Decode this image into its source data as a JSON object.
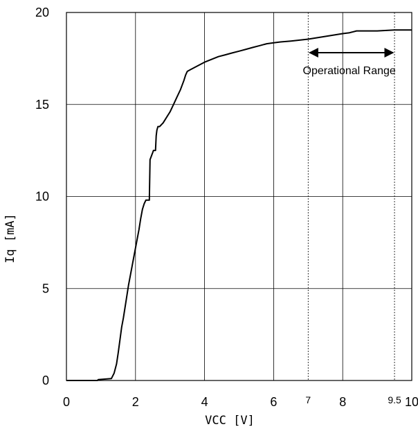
{
  "chart_data": {
    "type": "line",
    "title": "",
    "xlabel": "VCC [V]",
    "ylabel": "Iq [mA]",
    "xlim": [
      0,
      10
    ],
    "ylim": [
      0,
      20
    ],
    "grid": true,
    "x_ticks": [
      {
        "value": 0,
        "label": "0"
      },
      {
        "value": 2,
        "label": "2"
      },
      {
        "value": 4,
        "label": "4"
      },
      {
        "value": 6,
        "label": "6"
      },
      {
        "value": 7,
        "label": "7",
        "small": true
      },
      {
        "value": 8,
        "label": "8"
      },
      {
        "value": 9.5,
        "label": "9.5",
        "small": true
      },
      {
        "value": 10,
        "label": "10"
      }
    ],
    "y_ticks": [
      {
        "value": 0,
        "label": "0"
      },
      {
        "value": 5,
        "label": "5"
      },
      {
        "value": 10,
        "label": "10"
      },
      {
        "value": 15,
        "label": "15"
      },
      {
        "value": 20,
        "label": "20"
      }
    ],
    "grid_x_solid": [
      2,
      4,
      6,
      8
    ],
    "grid_x_dotted": [
      7,
      9.5
    ],
    "grid_y": [
      5,
      10,
      15
    ],
    "annotation": {
      "text": "Operational Range",
      "x_start": 7,
      "x_end": 9.5,
      "y": 17.7
    },
    "series": [
      {
        "x": [
          0,
          0.9,
          0.92,
          1.3,
          1.38,
          1.45,
          1.5,
          1.55,
          1.6,
          1.65,
          1.7,
          1.75,
          1.8,
          1.85,
          1.9,
          1.95,
          2.0,
          2.05,
          2.1,
          2.15,
          2.2,
          2.25,
          2.3,
          2.35,
          2.4,
          2.42,
          2.48,
          2.5,
          2.52,
          2.55,
          2.58,
          2.6,
          2.62,
          2.65,
          2.7,
          2.8,
          2.9,
          3.0,
          3.1,
          3.2,
          3.3,
          3.4,
          3.45,
          3.5,
          3.55,
          3.6,
          3.8,
          4.0,
          4.2,
          4.4,
          4.6,
          4.8,
          5.0,
          5.2,
          5.4,
          5.6,
          5.8,
          6.0,
          6.2,
          6.5,
          7.0,
          7.5,
          8.0,
          8.2,
          8.4,
          9.0,
          9.5,
          10.0
        ],
        "y": [
          0,
          0,
          0.05,
          0.1,
          0.4,
          0.9,
          1.5,
          2.2,
          2.9,
          3.4,
          4.0,
          4.6,
          5.2,
          5.7,
          6.2,
          6.7,
          7.2,
          7.7,
          8.2,
          8.8,
          9.3,
          9.6,
          9.8,
          9.8,
          9.8,
          12.0,
          12.3,
          12.4,
          12.5,
          12.5,
          12.5,
          13.3,
          13.6,
          13.8,
          13.8,
          14.0,
          14.3,
          14.6,
          15.0,
          15.4,
          15.8,
          16.3,
          16.6,
          16.8,
          16.85,
          16.9,
          17.1,
          17.3,
          17.45,
          17.6,
          17.7,
          17.8,
          17.9,
          18.0,
          18.1,
          18.2,
          18.3,
          18.35,
          18.4,
          18.45,
          18.55,
          18.7,
          18.85,
          18.9,
          19.0,
          19.0,
          19.05,
          19.05
        ]
      }
    ]
  }
}
